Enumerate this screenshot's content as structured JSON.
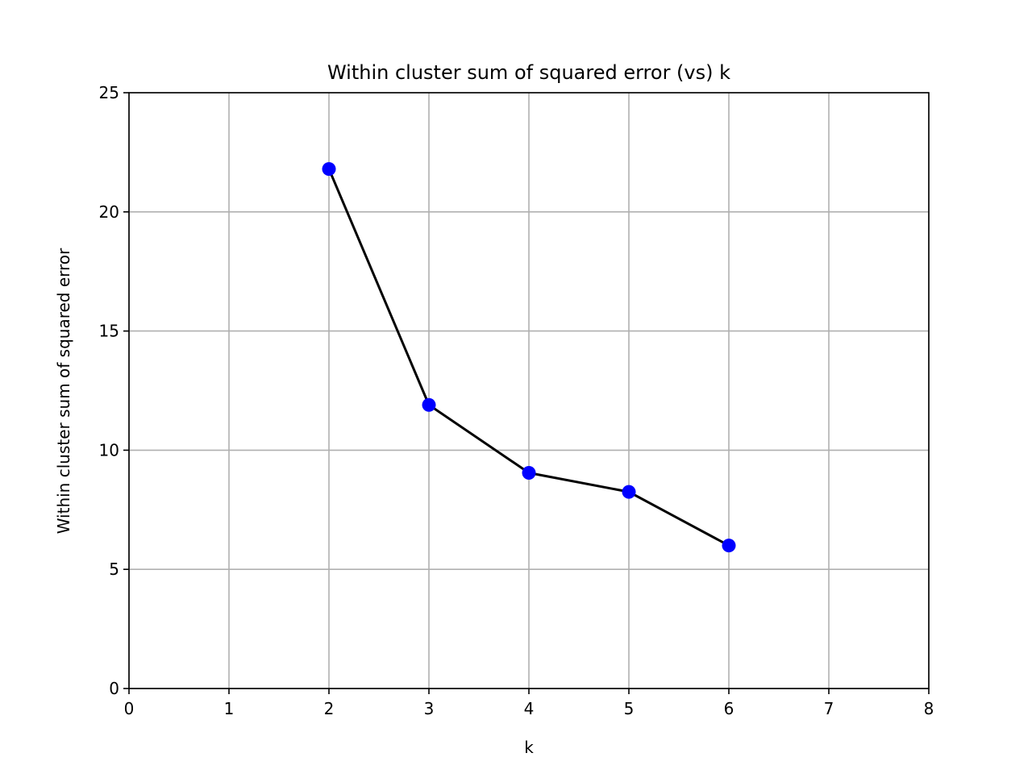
{
  "chart_data": {
    "type": "line",
    "title": "Within cluster sum of squared error (vs) k",
    "xlabel": "k",
    "ylabel": "Within cluster sum of squared error",
    "xlim": [
      0,
      8
    ],
    "ylim": [
      0,
      25
    ],
    "xticks": [
      "0",
      "1",
      "2",
      "3",
      "4",
      "5",
      "6",
      "7",
      "8"
    ],
    "yticks": [
      "0",
      "5",
      "10",
      "15",
      "20",
      "25"
    ],
    "grid": true,
    "series": [
      {
        "x": [
          2,
          3,
          4,
          5,
          6
        ],
        "y": [
          21.8,
          11.9,
          9.05,
          8.25,
          6.0
        ],
        "line_color": "#000000",
        "marker_color": "#0000ff"
      }
    ]
  }
}
